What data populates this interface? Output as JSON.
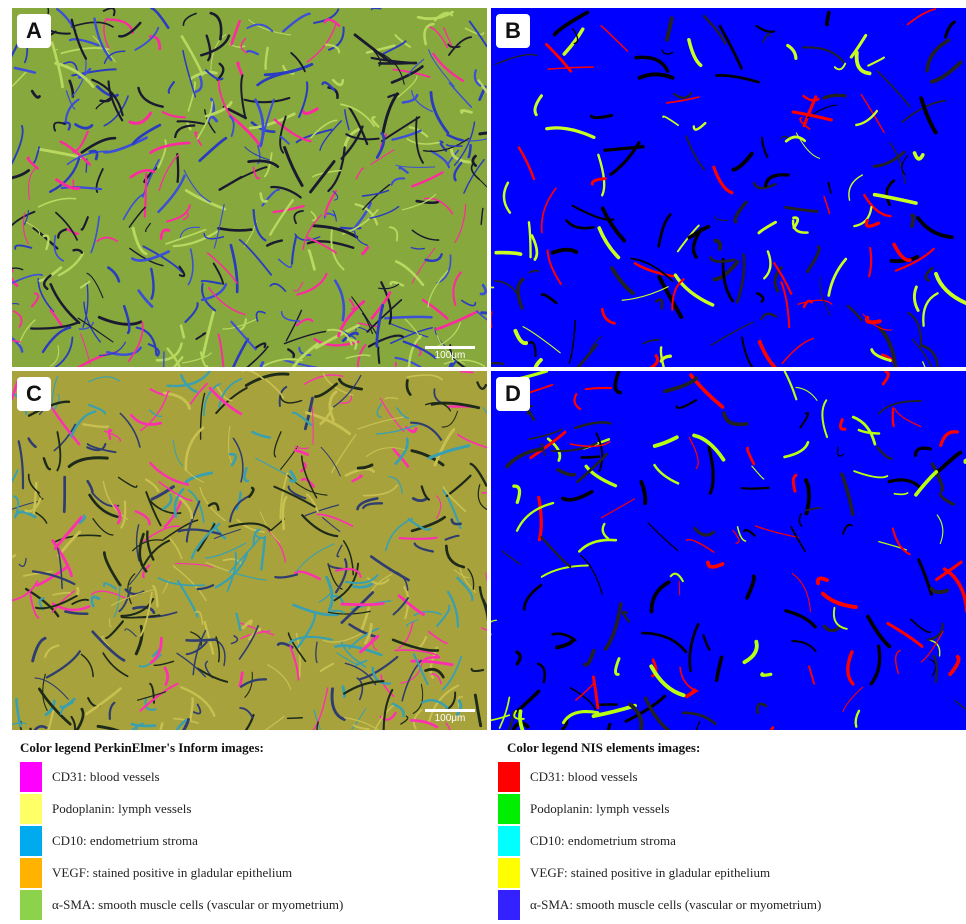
{
  "panels": [
    {
      "label": "A",
      "scale_bar": "100μm"
    },
    {
      "label": "B"
    },
    {
      "label": "C",
      "scale_bar": "100μm"
    },
    {
      "label": "D"
    }
  ],
  "legends": {
    "left": {
      "title": "Color legend PerkinElmer's Inform images:",
      "items": [
        {
          "label": "CD31: blood vessels",
          "color": "#ff00ff"
        },
        {
          "label": "Podoplanin: lymph vessels",
          "color": "#ffff66"
        },
        {
          "label": "CD10: endometrium stroma",
          "color": "#00aaee"
        },
        {
          "label": "VEGF: stained positive in gladular epithelium",
          "color": "#ffb300"
        },
        {
          "label": "α-SMA: smooth muscle cells (vascular or myometrium)",
          "color": "#8cd24a"
        }
      ]
    },
    "right": {
      "title": "Color legend NIS elements images:",
      "items": [
        {
          "label": "CD31: blood vessels",
          "color": "#ff0000"
        },
        {
          "label": "Podoplanin: lymph vessels",
          "color": "#00ee00"
        },
        {
          "label": "CD10: endometrium stroma",
          "color": "#00ffff"
        },
        {
          "label": "VEGF: stained positive in gladular epithelium",
          "color": "#ffff00"
        },
        {
          "label": "α-SMA: smooth muscle cells (vascular or myometrium)",
          "color": "#3322ff"
        }
      ]
    }
  }
}
